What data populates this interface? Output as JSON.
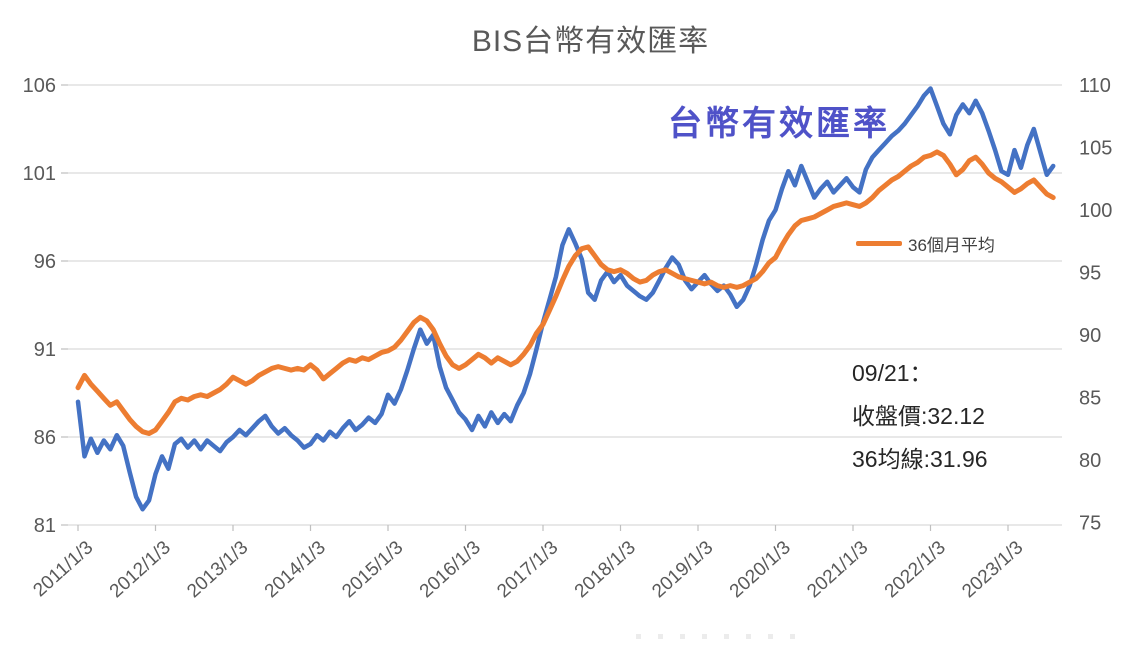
{
  "title": "BIS台幣有效匯率",
  "overlay": {
    "series_callout": "台幣有效匯率",
    "annotation": {
      "date_line": "09/21：",
      "close_line": "收盤價:32.12",
      "ma_line": "36均線:31.96"
    }
  },
  "legend": {
    "ma_label": "36個月平均"
  },
  "colors": {
    "rate_line": "#4472c4",
    "ma_line": "#ed7d31",
    "callout_text": "#4f52c8",
    "title_text": "#595959",
    "axis_text": "#595959",
    "gridline": "#d9d9d9",
    "tick_mark": "#bfbfbf"
  },
  "chart_data": {
    "type": "line",
    "title": "BIS台幣有效匯率",
    "x_start": "2011-01",
    "x_end": "2023-08",
    "x_interval": "monthly",
    "x_tick_labels": [
      "2011/1/3",
      "2012/1/3",
      "2013/1/3",
      "2014/1/3",
      "2015/1/3",
      "2016/1/3",
      "2017/1/3",
      "2018/1/3",
      "2019/1/3",
      "2020/1/3",
      "2021/1/3",
      "2022/1/3",
      "2023/1/3"
    ],
    "left_axis": {
      "min": 81,
      "max": 106,
      "ticks": [
        81,
        86,
        91,
        96,
        101,
        106
      ]
    },
    "right_axis": {
      "min": 75,
      "max": 110,
      "ticks": [
        75,
        80,
        85,
        90,
        95,
        100,
        105,
        110
      ]
    },
    "grid": true,
    "legend_position": "right-middle",
    "series": [
      {
        "name": "台幣有效匯率",
        "color": "#4472c4",
        "axis": "left",
        "values": [
          88.0,
          84.9,
          85.9,
          85.1,
          85.8,
          85.3,
          86.1,
          85.5,
          84.0,
          82.6,
          81.9,
          82.4,
          83.9,
          84.9,
          84.2,
          85.6,
          85.9,
          85.4,
          85.8,
          85.3,
          85.8,
          85.5,
          85.2,
          85.7,
          86.0,
          86.4,
          86.1,
          86.5,
          86.9,
          87.2,
          86.6,
          86.2,
          86.5,
          86.1,
          85.8,
          85.4,
          85.6,
          86.1,
          85.8,
          86.3,
          86.0,
          86.5,
          86.9,
          86.4,
          86.7,
          87.1,
          86.8,
          87.3,
          88.4,
          87.9,
          88.7,
          89.8,
          91.0,
          92.1,
          91.3,
          91.8,
          90.0,
          88.8,
          88.1,
          87.4,
          87.0,
          86.4,
          87.2,
          86.6,
          87.4,
          86.8,
          87.3,
          86.9,
          87.8,
          88.5,
          89.6,
          91.0,
          92.5,
          93.8,
          95.1,
          96.9,
          97.8,
          97.0,
          96.1,
          94.2,
          93.8,
          94.9,
          95.4,
          94.8,
          95.2,
          94.6,
          94.3,
          94.0,
          93.8,
          94.2,
          94.9,
          95.6,
          96.2,
          95.8,
          94.9,
          94.4,
          94.8,
          95.2,
          94.7,
          94.3,
          94.6,
          94.1,
          93.4,
          93.8,
          94.6,
          95.8,
          97.2,
          98.3,
          98.9,
          100.1,
          101.1,
          100.3,
          101.4,
          100.5,
          99.6,
          100.1,
          100.5,
          99.9,
          100.3,
          100.7,
          100.2,
          99.9,
          101.2,
          101.9,
          102.3,
          102.7,
          103.1,
          103.4,
          103.8,
          104.3,
          104.8,
          105.4,
          105.8,
          104.8,
          103.8,
          103.2,
          104.3,
          104.9,
          104.4,
          105.1,
          104.4,
          103.4,
          102.3,
          101.1,
          100.9,
          102.3,
          101.3,
          102.6,
          103.5,
          102.2,
          100.9,
          101.4
        ]
      },
      {
        "name": "36個月平均",
        "color": "#ed7d31",
        "axis": "left",
        "values": [
          88.8,
          89.5,
          89.0,
          88.6,
          88.2,
          87.8,
          88.0,
          87.5,
          87.0,
          86.6,
          86.3,
          86.2,
          86.4,
          86.9,
          87.4,
          88.0,
          88.2,
          88.1,
          88.3,
          88.4,
          88.3,
          88.5,
          88.7,
          89.0,
          89.4,
          89.2,
          89.0,
          89.2,
          89.5,
          89.7,
          89.9,
          90.0,
          89.9,
          89.8,
          89.9,
          89.8,
          90.1,
          89.8,
          89.3,
          89.6,
          89.9,
          90.2,
          90.4,
          90.3,
          90.5,
          90.4,
          90.6,
          90.8,
          90.9,
          91.1,
          91.5,
          92.0,
          92.5,
          92.8,
          92.6,
          92.1,
          91.3,
          90.6,
          90.1,
          89.9,
          90.1,
          90.4,
          90.7,
          90.5,
          90.2,
          90.5,
          90.3,
          90.1,
          90.3,
          90.7,
          91.2,
          91.9,
          92.4,
          93.2,
          94.0,
          94.9,
          95.7,
          96.3,
          96.7,
          96.8,
          96.3,
          95.8,
          95.5,
          95.4,
          95.5,
          95.3,
          95.0,
          94.8,
          94.9,
          95.2,
          95.4,
          95.5,
          95.3,
          95.1,
          95.0,
          94.9,
          94.8,
          94.7,
          94.8,
          94.6,
          94.5,
          94.6,
          94.5,
          94.6,
          94.8,
          95.0,
          95.4,
          95.9,
          96.2,
          96.9,
          97.5,
          98.0,
          98.3,
          98.4,
          98.5,
          98.7,
          98.9,
          99.1,
          99.2,
          99.3,
          99.2,
          99.1,
          99.3,
          99.6,
          100.0,
          100.3,
          100.6,
          100.8,
          101.1,
          101.4,
          101.6,
          101.9,
          102.0,
          102.2,
          102.0,
          101.5,
          100.9,
          101.2,
          101.7,
          101.9,
          101.5,
          101.0,
          100.7,
          100.5,
          100.2,
          99.9,
          100.1,
          100.4,
          100.6,
          100.2,
          99.8,
          99.6
        ]
      }
    ]
  }
}
